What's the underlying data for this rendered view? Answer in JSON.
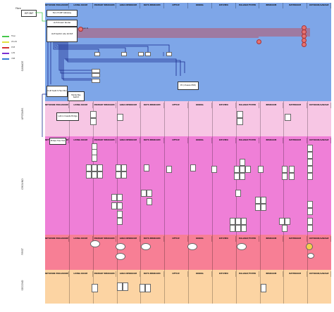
{
  "legend": [
    {
      "label": "Fiber",
      "color": "#46c84b"
    },
    {
      "label": "WLAN",
      "color": "#e0e040"
    },
    {
      "label": "POE",
      "color": "#d32f2f"
    },
    {
      "label": "LAN",
      "color": "#7a2fd3"
    },
    {
      "label": "USB",
      "color": "#2f7ad3"
    }
  ],
  "isp": {
    "label": "Fibre",
    "box": "ISP ONT"
  },
  "floors": [
    "GARAGE",
    "UPSTAIRS",
    "GROUND",
    "FIRST",
    "SECOND"
  ],
  "columns": [
    "NETWORK ENCLOSURE",
    "LIVING ROOM",
    "PRIMARY BEDROOM",
    "GIRLS BEDROOM",
    "BOYS BEDROOM",
    "OFFICE",
    "DINING",
    "KITCHEN",
    "HALLWAY/FOYER",
    "BEDROOM",
    "BATHROOM",
    "OUTDOOR/GARAGE"
  ],
  "network": {
    "gateway": "Eero Pro6E Gateway",
    "router": "Unifi Dream Router",
    "switch": "Unifi Switch Lite 16 PoE",
    "switch2": "Unifi Switch Flex Mini",
    "doorbell": "Media Bay Switch",
    "bridge": "Lutron Caseta Bridge",
    "hub": "Philips Hue Hub",
    "nvr": "PC (chassis NVR)",
    "poe_cam": "Cam 01"
  },
  "bands": [
    {
      "name": "network",
      "color": "#7ea6e8"
    },
    {
      "name": "caseta",
      "color": "#f7c6e4"
    },
    {
      "name": "hue",
      "color": "#ef7fd7"
    },
    {
      "name": "zigbee",
      "color": "#f77f95"
    },
    {
      "name": "other",
      "color": "#fcd4a3"
    }
  ]
}
